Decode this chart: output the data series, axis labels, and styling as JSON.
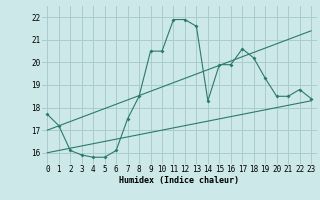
{
  "xlabel": "Humidex (Indice chaleur)",
  "background_color": "#cce8e8",
  "grid_color": "#aacccc",
  "line_color": "#2a7a6a",
  "xlim": [
    -0.5,
    23.5
  ],
  "ylim": [
    15.5,
    22.5
  ],
  "xticks": [
    0,
    1,
    2,
    3,
    4,
    5,
    6,
    7,
    8,
    9,
    10,
    11,
    12,
    13,
    14,
    15,
    16,
    17,
    18,
    19,
    20,
    21,
    22,
    23
  ],
  "yticks": [
    16,
    17,
    18,
    19,
    20,
    21,
    22
  ],
  "line1_x": [
    0,
    1,
    2,
    3,
    4,
    5,
    6,
    7,
    8,
    9,
    10,
    11,
    12,
    13,
    14,
    15,
    16,
    17,
    18,
    19,
    20,
    21,
    22,
    23
  ],
  "line1_y": [
    17.7,
    17.2,
    16.1,
    15.9,
    15.8,
    15.8,
    16.1,
    17.5,
    18.5,
    20.5,
    20.5,
    21.9,
    21.9,
    21.6,
    18.3,
    19.9,
    19.9,
    20.6,
    20.2,
    19.3,
    18.5,
    18.5,
    18.8,
    18.4
  ],
  "line2_x": [
    0,
    23
  ],
  "line2_y": [
    16.0,
    18.3
  ],
  "line3_x": [
    0,
    23
  ],
  "line3_y": [
    17.0,
    21.4
  ]
}
